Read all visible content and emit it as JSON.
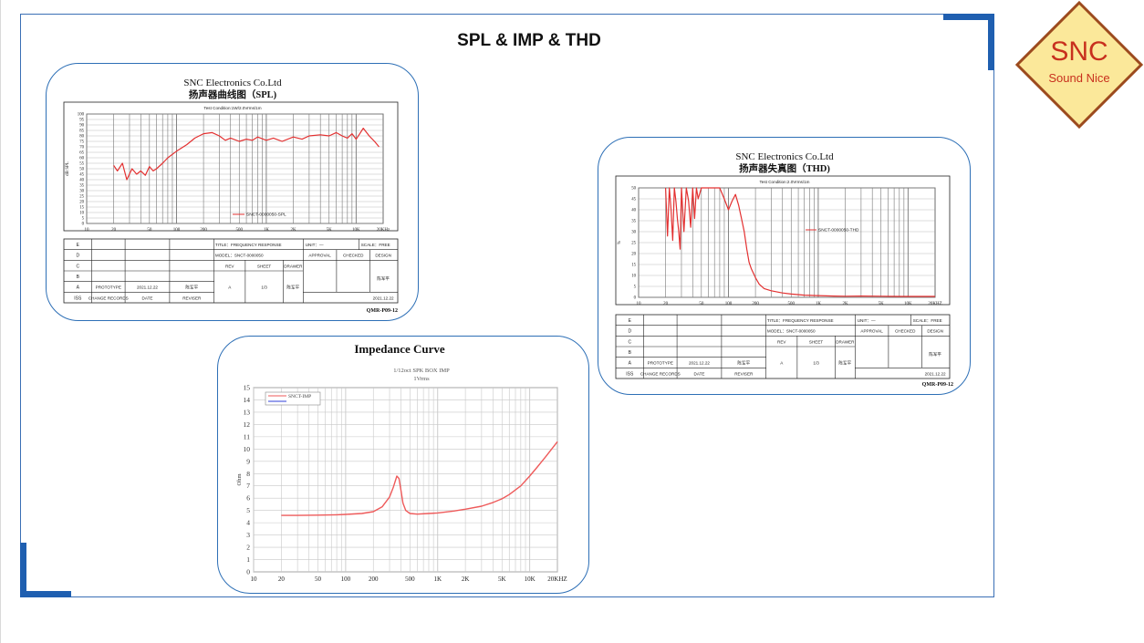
{
  "slide": {
    "title": "SPL & IMP & THD"
  },
  "logo": {
    "brand": "SNC",
    "tagline": "Sound Nice",
    "fill": "#fbe89a",
    "border": "#9c4a1e",
    "text_color": "#c8301e"
  },
  "spl_chart": {
    "company": "SNC Electronics Co.Ltd",
    "subtitle": "扬声器曲线图（SPL)",
    "condition": "Test Condition:1W/2.0Vrms/1m",
    "legend": "SNCT-0000050-SPL",
    "ylabel": "dB SPL",
    "doc_code": "QMR-P09-12",
    "series_color": "#e33030",
    "chart_data": {
      "type": "line",
      "title": "SNC Electronics Co.Ltd 扬声器曲线图（SPL)",
      "xlabel": "Hz",
      "ylabel": "dB SPL",
      "xscale": "log",
      "xlim": [
        10,
        20000
      ],
      "ylim": [
        0,
        100
      ],
      "y_ticks": [
        100,
        95,
        90,
        85,
        80,
        75,
        70,
        65,
        60,
        55,
        50,
        45,
        40,
        35,
        30,
        25,
        20,
        15,
        10,
        5,
        0
      ],
      "x_ticks": [
        "10",
        "20",
        "50",
        "100",
        "200",
        "500",
        "1K",
        "2K",
        "5K",
        "10K",
        "20KHz"
      ],
      "series": [
        {
          "name": "SNCT-0000050-SPL",
          "x": [
            20,
            22,
            25,
            28,
            32,
            36,
            40,
            45,
            50,
            55,
            60,
            70,
            80,
            100,
            130,
            160,
            200,
            250,
            300,
            350,
            400,
            500,
            600,
            700,
            800,
            1000,
            1200,
            1500,
            2000,
            2500,
            3000,
            4000,
            5000,
            6000,
            7000,
            8000,
            9000,
            10000,
            11000,
            12000,
            14000,
            16000,
            18000
          ],
          "y": [
            53,
            48,
            55,
            40,
            50,
            45,
            48,
            44,
            52,
            48,
            50,
            55,
            60,
            66,
            72,
            78,
            82,
            83,
            80,
            76,
            78,
            75,
            77,
            76,
            79,
            76,
            78,
            75,
            79,
            77,
            80,
            81,
            80,
            83,
            80,
            78,
            82,
            77,
            82,
            87,
            80,
            75,
            70
          ]
        }
      ]
    },
    "table": {
      "rows": [
        {
          "code": "E",
          "cells": [
            "",
            "",
            ""
          ]
        },
        {
          "code": "D",
          "cells": [
            "",
            "",
            ""
          ]
        },
        {
          "code": "C",
          "cells": [
            "",
            "",
            ""
          ]
        },
        {
          "code": "B",
          "cells": [
            "",
            "",
            ""
          ]
        },
        {
          "code": "A",
          "cells": [
            "PROTOTYPE",
            "2021.12.22",
            "陈军平"
          ]
        },
        {
          "code": "ISS",
          "cells": [
            "CHANGE RECORDS",
            "DATE",
            "REVISER"
          ]
        }
      ],
      "title": "TITLE：FREQUENCY RESPONSE",
      "unit": "UNIT：—",
      "scale": "SCALE：FREE",
      "model": "MODEL：SNCT-0000050",
      "approval": "APPROVAL",
      "checked": "CHECKED",
      "design": "DESIGN",
      "rev": "REV",
      "sheet": "SHEET",
      "drawer": "DRAWER",
      "rev_val": "A",
      "sheet_val": "1/3",
      "drawer_val": "陈军平",
      "design_val": "陈军平",
      "date_val": "2021.12.22"
    }
  },
  "thd_chart": {
    "company": "SNC Electronics Co.Ltd",
    "subtitle": "扬声器失真图（THD)",
    "condition": "Test Condition:2.0Vrms/1m",
    "legend": "SNCT-0000050-THD",
    "ylabel": "%",
    "doc_code": "QMR-P09-12",
    "series_color": "#e33030",
    "chart_data": {
      "type": "line",
      "title": "SNC Electronics Co.Ltd 扬声器失真图（THD)",
      "xlabel": "Hz",
      "ylabel": "%",
      "xscale": "log",
      "xlim": [
        10,
        20000
      ],
      "ylim": [
        0,
        50
      ],
      "y_ticks": [
        50,
        45,
        40,
        35,
        30,
        25,
        20,
        15,
        10,
        5,
        0
      ],
      "x_ticks": [
        "10",
        "20",
        "50",
        "100",
        "200",
        "500",
        "1K",
        "2K",
        "5K",
        "10K",
        "20KHZ"
      ],
      "series": [
        {
          "name": "SNCT-0000050-THD",
          "x": [
            20,
            21,
            22,
            23,
            24,
            25,
            26,
            27,
            28,
            29,
            30,
            32,
            34,
            36,
            38,
            40,
            42,
            44,
            46,
            50,
            55,
            60,
            70,
            80,
            90,
            100,
            110,
            120,
            130,
            140,
            150,
            160,
            170,
            180,
            200,
            220,
            250,
            300,
            400,
            500,
            700,
            1000,
            1500,
            2000,
            3000,
            5000,
            8000,
            12000,
            20000
          ],
          "y": [
            50,
            28,
            50,
            40,
            26,
            50,
            44,
            36,
            30,
            22,
            50,
            30,
            50,
            44,
            32,
            50,
            36,
            50,
            45,
            50,
            50,
            50,
            50,
            50,
            45,
            40,
            44,
            47,
            42,
            36,
            30,
            22,
            16,
            13,
            9,
            6,
            4,
            3,
            2,
            1.5,
            1,
            0.8,
            0.6,
            0.5,
            0.6,
            0.5,
            0.4,
            0.4,
            0.4
          ]
        }
      ]
    },
    "table": {
      "rows": [
        {
          "code": "E",
          "cells": [
            "",
            "",
            ""
          ]
        },
        {
          "code": "D",
          "cells": [
            "",
            "",
            ""
          ]
        },
        {
          "code": "C",
          "cells": [
            "",
            "",
            ""
          ]
        },
        {
          "code": "B",
          "cells": [
            "",
            "",
            ""
          ]
        },
        {
          "code": "A",
          "cells": [
            "PROTOTYPE",
            "2021.12.22",
            "陈军平"
          ]
        },
        {
          "code": "ISS",
          "cells": [
            "CHANGE RECORDS",
            "DATE",
            "REVISER"
          ]
        }
      ],
      "title": "TITLE：FREQUENCY RESPONSE",
      "unit": "UNIT：—",
      "scale": "SCALE：FREE",
      "model": "MODEL：SNCT-0000050",
      "approval": "APPROVAL",
      "checked": "CHECKED",
      "design": "DESIGN",
      "rev": "REV",
      "sheet": "SHEET",
      "drawer": "DRAWER",
      "rev_val": "A",
      "sheet_val": "1/3",
      "drawer_val": "陈军平",
      "design_val": "陈军平",
      "date_val": "2021.12.22"
    }
  },
  "imp_chart": {
    "title": "Impedance Curve",
    "subtitle1": "1/12oct SPK BOX IMP",
    "subtitle2": "1Vrms",
    "legend": "SNCT-IMP",
    "ylabel": "Ohm",
    "series_color": "#ee5a5a",
    "legend_second_color": "#2f3fd8",
    "chart_data": {
      "type": "line",
      "title": "Impedance Curve",
      "xlabel": "HZ",
      "ylabel": "Ohm",
      "xscale": "log",
      "xlim": [
        10,
        20000
      ],
      "ylim": [
        0,
        15
      ],
      "y_ticks": [
        15,
        14,
        13,
        12,
        11,
        10,
        9,
        8,
        7,
        6,
        5,
        4,
        3,
        2,
        1,
        0
      ],
      "x_ticks": [
        "10",
        "20",
        "50",
        "100",
        "200",
        "500",
        "1K",
        "2K",
        "5K",
        "10K",
        "20KHZ"
      ],
      "series": [
        {
          "name": "SNCT-IMP",
          "x": [
            20,
            30,
            50,
            80,
            100,
            150,
            200,
            250,
            300,
            330,
            360,
            380,
            400,
            420,
            450,
            500,
            600,
            800,
            1000,
            1500,
            2000,
            3000,
            4000,
            5000,
            6000,
            8000,
            10000,
            12000,
            15000,
            20000
          ],
          "y": [
            4.6,
            4.6,
            4.62,
            4.65,
            4.68,
            4.75,
            4.9,
            5.3,
            6.1,
            6.9,
            7.8,
            7.6,
            6.6,
            5.6,
            5.0,
            4.75,
            4.7,
            4.75,
            4.8,
            4.95,
            5.1,
            5.35,
            5.65,
            5.95,
            6.3,
            7.0,
            7.8,
            8.5,
            9.4,
            10.6
          ]
        }
      ]
    }
  }
}
